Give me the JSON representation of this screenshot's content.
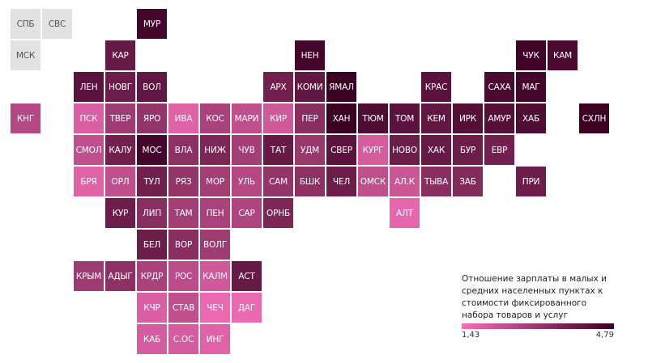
{
  "legend": {
    "title": "Отношение зарплаты в малых и средних населенных пунктах к стоимости фиксированного набора товаров и услуг",
    "min_label": "1,43",
    "max_label": "4,79",
    "min_value": 1.43,
    "max_value": 4.79,
    "color_low": "#f46fb9",
    "color_high": "#3b0022",
    "no_data_color": "#e2e2e2"
  },
  "tiles": [
    {
      "label": "СПБ",
      "row": 0,
      "col": 0,
      "value": null
    },
    {
      "label": "СВС",
      "row": 0,
      "col": 1,
      "value": null
    },
    {
      "label": "МУР",
      "row": 0,
      "col": 4,
      "value": 4.6
    },
    {
      "label": "МСК",
      "row": 1,
      "col": 0,
      "value": null
    },
    {
      "label": "КАР",
      "row": 1,
      "col": 3,
      "value": 4.0
    },
    {
      "label": "НЕН",
      "row": 1,
      "col": 9,
      "value": 4.6
    },
    {
      "label": "ЧУК",
      "row": 1,
      "col": 16,
      "value": 4.7
    },
    {
      "label": "КАМ",
      "row": 1,
      "col": 17,
      "value": 4.5
    },
    {
      "label": "ЛЕН",
      "row": 2,
      "col": 2,
      "value": 4.2
    },
    {
      "label": "НОВГ",
      "row": 2,
      "col": 3,
      "value": 3.9
    },
    {
      "label": "ВОЛ",
      "row": 2,
      "col": 4,
      "value": 4.1
    },
    {
      "label": "АРХ",
      "row": 2,
      "col": 8,
      "value": 3.8
    },
    {
      "label": "КОМИ",
      "row": 2,
      "col": 9,
      "value": 4.1
    },
    {
      "label": "ЯМАЛ",
      "row": 2,
      "col": 10,
      "value": 4.79
    },
    {
      "label": "КРАС",
      "row": 2,
      "col": 13,
      "value": 4.2
    },
    {
      "label": "САХА",
      "row": 2,
      "col": 15,
      "value": 4.5
    },
    {
      "label": "МАГ",
      "row": 2,
      "col": 16,
      "value": 4.6
    },
    {
      "label": "КНГ",
      "row": 3,
      "col": 0,
      "value": 2.6
    },
    {
      "label": "ПСК",
      "row": 3,
      "col": 2,
      "value": 1.9
    },
    {
      "label": "ТВЕР",
      "row": 3,
      "col": 3,
      "value": 3.0
    },
    {
      "label": "ЯРО",
      "row": 3,
      "col": 4,
      "value": 3.2
    },
    {
      "label": "ИВА",
      "row": 3,
      "col": 5,
      "value": 1.8
    },
    {
      "label": "КОС",
      "row": 3,
      "col": 6,
      "value": 2.8
    },
    {
      "label": "МАРИ",
      "row": 3,
      "col": 7,
      "value": 2.4
    },
    {
      "label": "КИР",
      "row": 3,
      "col": 8,
      "value": 2.1
    },
    {
      "label": "ПЕР",
      "row": 3,
      "col": 9,
      "value": 3.4
    },
    {
      "label": "ХАН",
      "row": 3,
      "col": 10,
      "value": 4.79
    },
    {
      "label": "ТЮМ",
      "row": 3,
      "col": 11,
      "value": 4.4
    },
    {
      "label": "ТОМ",
      "row": 3,
      "col": 12,
      "value": 4.2
    },
    {
      "label": "КЕМ",
      "row": 3,
      "col": 13,
      "value": 4.1
    },
    {
      "label": "ИРК",
      "row": 3,
      "col": 14,
      "value": 4.3
    },
    {
      "label": "АМУР",
      "row": 3,
      "col": 15,
      "value": 4.3
    },
    {
      "label": "ХАБ",
      "row": 3,
      "col": 16,
      "value": 4.4
    },
    {
      "label": "СХЛН",
      "row": 3,
      "col": 18,
      "value": 4.79
    },
    {
      "label": "СМОЛ",
      "row": 4,
      "col": 2,
      "value": 2.4
    },
    {
      "label": "КАЛУ",
      "row": 4,
      "col": 3,
      "value": 3.8
    },
    {
      "label": "МОС",
      "row": 4,
      "col": 4,
      "value": 4.6
    },
    {
      "label": "ВЛА",
      "row": 4,
      "col": 5,
      "value": 3.3
    },
    {
      "label": "НИЖ",
      "row": 4,
      "col": 6,
      "value": 3.6
    },
    {
      "label": "ЧУВ",
      "row": 4,
      "col": 7,
      "value": 2.9
    },
    {
      "label": "ТАТ",
      "row": 4,
      "col": 8,
      "value": 4.0
    },
    {
      "label": "УДМ",
      "row": 4,
      "col": 9,
      "value": 3.1
    },
    {
      "label": "СВЕР",
      "row": 4,
      "col": 10,
      "value": 4.2
    },
    {
      "label": "КУРГ",
      "row": 4,
      "col": 11,
      "value": 2.0
    },
    {
      "label": "НОВО",
      "row": 4,
      "col": 12,
      "value": 3.9
    },
    {
      "label": "ХАК",
      "row": 4,
      "col": 13,
      "value": 4.0
    },
    {
      "label": "БУР",
      "row": 4,
      "col": 14,
      "value": 3.9
    },
    {
      "label": "ЕВР",
      "row": 4,
      "col": 15,
      "value": 3.8
    },
    {
      "label": "БРЯ",
      "row": 5,
      "col": 2,
      "value": 1.8
    },
    {
      "label": "ОРЛ",
      "row": 5,
      "col": 3,
      "value": 2.4
    },
    {
      "label": "ТУЛ",
      "row": 5,
      "col": 4,
      "value": 3.8
    },
    {
      "label": "РЯЗ",
      "row": 5,
      "col": 5,
      "value": 3.2
    },
    {
      "label": "МОР",
      "row": 5,
      "col": 6,
      "value": 2.9
    },
    {
      "label": "УЛЬ",
      "row": 5,
      "col": 7,
      "value": 2.6
    },
    {
      "label": "САМ",
      "row": 5,
      "col": 8,
      "value": 3.2
    },
    {
      "label": "БШК",
      "row": 5,
      "col": 9,
      "value": 3.3
    },
    {
      "label": "ЧЕЛ",
      "row": 5,
      "col": 10,
      "value": 3.9
    },
    {
      "label": "ОМСК",
      "row": 5,
      "col": 11,
      "value": 2.4
    },
    {
      "label": "АЛ.К",
      "row": 5,
      "col": 12,
      "value": 2.2
    },
    {
      "label": "ТЫВА",
      "row": 5,
      "col": 13,
      "value": 3.4
    },
    {
      "label": "ЗАБ",
      "row": 5,
      "col": 14,
      "value": 3.5
    },
    {
      "label": "ПРИ",
      "row": 5,
      "col": 16,
      "value": 3.9
    },
    {
      "label": "КУР",
      "row": 6,
      "col": 3,
      "value": 3.9
    },
    {
      "label": "ЛИП",
      "row": 6,
      "col": 4,
      "value": 3.4
    },
    {
      "label": "ТАМ",
      "row": 6,
      "col": 5,
      "value": 2.9
    },
    {
      "label": "ПЕН",
      "row": 6,
      "col": 6,
      "value": 2.8
    },
    {
      "label": "САР",
      "row": 6,
      "col": 7,
      "value": 2.7
    },
    {
      "label": "ОРНБ",
      "row": 6,
      "col": 8,
      "value": 3.6
    },
    {
      "label": "АЛТ",
      "row": 6,
      "col": 12,
      "value": 1.7
    },
    {
      "label": "БЕЛ",
      "row": 7,
      "col": 4,
      "value": 3.9
    },
    {
      "label": "ВОР",
      "row": 7,
      "col": 5,
      "value": 3.4
    },
    {
      "label": "ВОЛГ",
      "row": 7,
      "col": 6,
      "value": 3.0
    },
    {
      "label": "КРЫМ",
      "row": 8,
      "col": 2,
      "value": 3.0
    },
    {
      "label": "АДЫГ",
      "row": 8,
      "col": 3,
      "value": 3.3
    },
    {
      "label": "КРДР",
      "row": 8,
      "col": 4,
      "value": 2.8
    },
    {
      "label": "РОС",
      "row": 8,
      "col": 5,
      "value": 2.5
    },
    {
      "label": "КАЛМ",
      "row": 8,
      "col": 6,
      "value": 2.1
    },
    {
      "label": "АСТ",
      "row": 8,
      "col": 7,
      "value": 4.0
    },
    {
      "label": "КЧР",
      "row": 9,
      "col": 4,
      "value": 1.9
    },
    {
      "label": "СТАВ",
      "row": 9,
      "col": 5,
      "value": 2.4
    },
    {
      "label": "ЧЕЧ",
      "row": 9,
      "col": 6,
      "value": 1.6
    },
    {
      "label": "ДАГ",
      "row": 9,
      "col": 7,
      "value": 1.6
    },
    {
      "label": "КАБ",
      "row": 10,
      "col": 4,
      "value": 2.0
    },
    {
      "label": "С.ОС",
      "row": 10,
      "col": 5,
      "value": 2.0
    },
    {
      "label": "ИНГ",
      "row": 10,
      "col": 6,
      "value": 1.8
    }
  ]
}
